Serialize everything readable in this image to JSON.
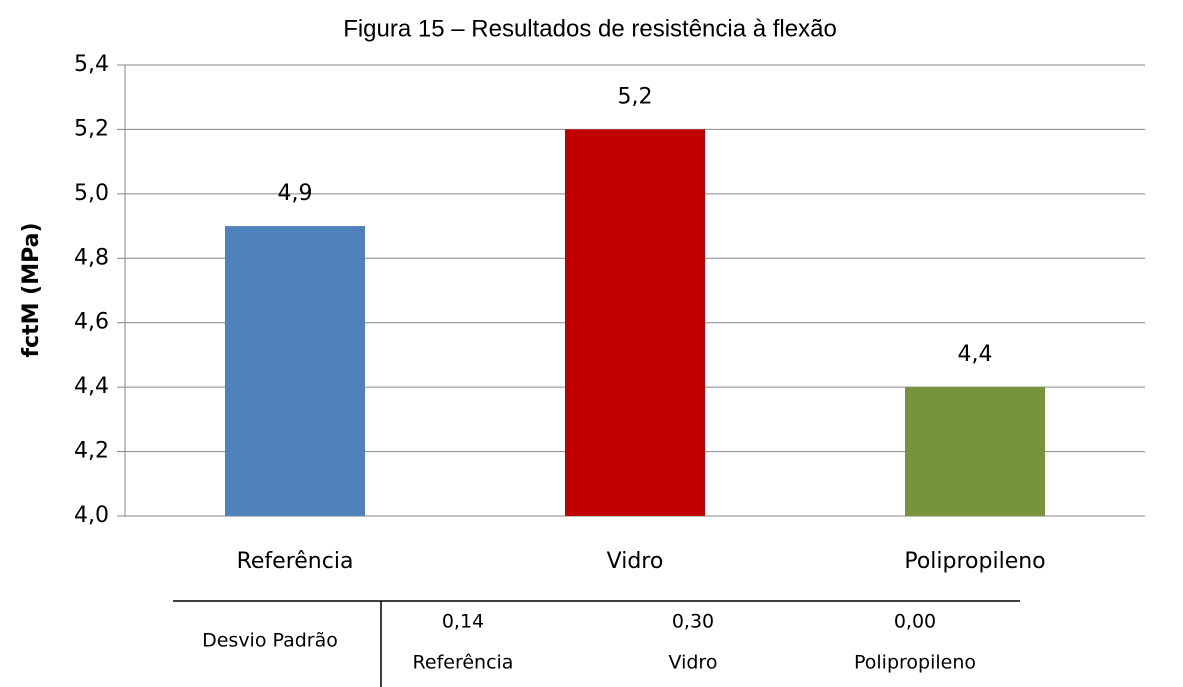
{
  "chart_data": {
    "type": "bar",
    "title": "Figura 15 – Resultados de resistência à flexão",
    "y_label": "fctM (MPa)",
    "categories": [
      "Referência",
      "Vidro",
      "Polipropileno"
    ],
    "values": [
      4.9,
      5.2,
      4.4
    ],
    "value_labels": [
      "4,9",
      "5,2",
      "4,4"
    ],
    "colors": [
      "#4f81bd",
      "#c00000",
      "#77933c"
    ],
    "ylim": [
      4.0,
      5.4
    ],
    "yticks": [
      {
        "value": 4.0,
        "label": "4,0"
      },
      {
        "value": 4.2,
        "label": "4,2"
      },
      {
        "value": 4.4,
        "label": "4,4"
      },
      {
        "value": 4.6,
        "label": "4,6"
      },
      {
        "value": 4.8,
        "label": "4,8"
      },
      {
        "value": 5.0,
        "label": "5,0"
      },
      {
        "value": 5.2,
        "label": "5,2"
      },
      {
        "value": 5.4,
        "label": "5,4"
      }
    ],
    "grid": true
  },
  "table": {
    "row_label": "Desvio Padrão",
    "values": [
      "0,14",
      "0,30",
      "0,00"
    ],
    "columns": [
      "Referência",
      "Vidro",
      "Polipropileno"
    ]
  }
}
